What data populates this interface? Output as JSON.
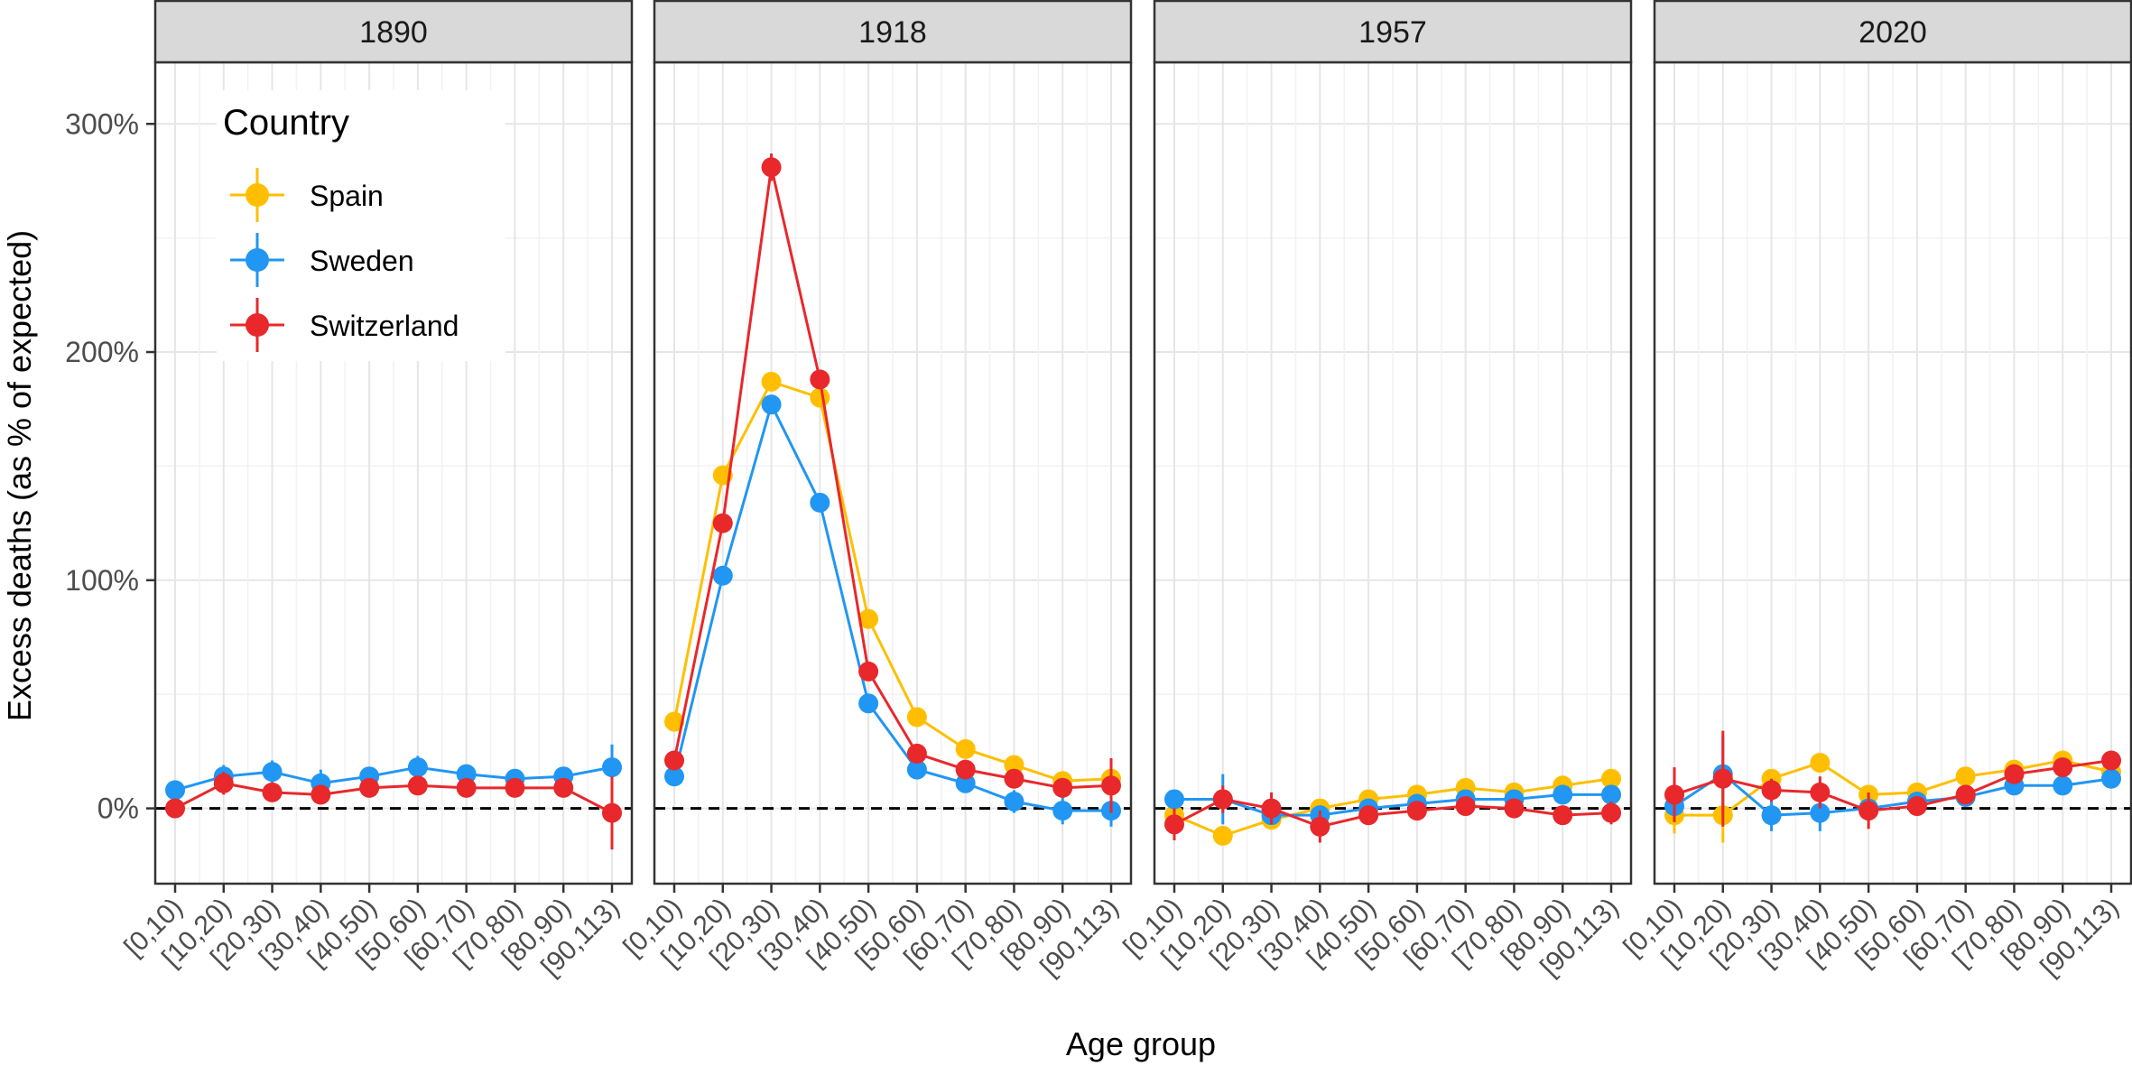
{
  "chart_data": {
    "type": "line",
    "title": "",
    "xlabel": "Age group",
    "ylabel": "Excess deaths (as % of expected)",
    "categories": [
      "[0,10)",
      "[10,20)",
      "[20,30)",
      "[30,40)",
      "[40,50)",
      "[50,60)",
      "[60,70)",
      "[70,80)",
      "[80,90)",
      "[90,113)"
    ],
    "y_ticks": [
      "0%",
      "100%",
      "200%",
      "300%"
    ],
    "y_tick_values": [
      0,
      100,
      200,
      300
    ],
    "ylim": [
      -33,
      327
    ],
    "reference_line": {
      "y": 0,
      "style": "dashed"
    },
    "grid": true,
    "legend": {
      "title": "Country",
      "position": "top-left inside first panel",
      "entries": [
        "Spain",
        "Sweden",
        "Switzerland"
      ]
    },
    "colors": {
      "Spain": "#FFBF00",
      "Sweden": "#2196F3",
      "Switzerland": "#E8282B"
    },
    "panels": [
      {
        "label": "1890",
        "series": [
          {
            "name": "Sweden",
            "values": [
              8,
              14,
              16,
              11,
              14,
              18,
              15,
              13,
              14,
              18
            ],
            "errors": [
              3,
              5,
              5,
              6,
              4,
              5,
              4,
              4,
              4,
              10
            ]
          },
          {
            "name": "Switzerland",
            "values": [
              0,
              11,
              7,
              6,
              9,
              10,
              9,
              9,
              9,
              -2
            ],
            "errors": [
              3,
              5,
              3,
              3,
              3,
              3,
              3,
              3,
              3,
              16
            ]
          }
        ]
      },
      {
        "label": "1918",
        "series": [
          {
            "name": "Spain",
            "values": [
              38,
              146,
              187,
              180,
              83,
              40,
              26,
              19,
              12,
              13
            ],
            "errors": [
              3,
              3,
              3,
              3,
              3,
              3,
              2,
              2,
              2,
              2
            ]
          },
          {
            "name": "Sweden",
            "values": [
              14,
              102,
              177,
              134,
              46,
              17,
              11,
              3,
              -1,
              -1
            ],
            "errors": [
              3,
              3,
              3,
              3,
              4,
              3,
              3,
              5,
              6,
              7
            ]
          },
          {
            "name": "Switzerland",
            "values": [
              21,
              125,
              281,
              188,
              60,
              24,
              17,
              13,
              9,
              10
            ],
            "errors": [
              3,
              4,
              6,
              4,
              4,
              3,
              3,
              3,
              3,
              12
            ]
          }
        ]
      },
      {
        "label": "1957",
        "series": [
          {
            "name": "Spain",
            "values": [
              -3,
              -12,
              -5,
              0,
              4,
              6,
              9,
              7,
              10,
              13
            ],
            "errors": [
              3,
              3,
              3,
              2,
              2,
              2,
              2,
              2,
              2,
              2
            ]
          },
          {
            "name": "Sweden",
            "values": [
              4,
              4,
              -3,
              -3,
              0,
              2,
              4,
              4,
              6,
              6
            ],
            "errors": [
              3,
              11,
              4,
              4,
              3,
              3,
              3,
              3,
              3,
              3
            ]
          },
          {
            "name": "Switzerland",
            "values": [
              -7,
              4,
              0,
              -8,
              -3,
              -1,
              1,
              0,
              -3,
              -2
            ],
            "errors": [
              7,
              6,
              7,
              7,
              4,
              3,
              3,
              3,
              3,
              5
            ]
          }
        ]
      },
      {
        "label": "2020",
        "series": [
          {
            "name": "Spain",
            "values": [
              -3,
              -3,
              13,
              20,
              6,
              7,
              14,
              17,
              21,
              16
            ],
            "errors": [
              8,
              12,
              3,
              3,
              3,
              2,
              2,
              2,
              2,
              2
            ]
          },
          {
            "name": "Sweden",
            "values": [
              1,
              15,
              -3,
              -2,
              0,
              3,
              5,
              10,
              10,
              13
            ],
            "errors": [
              7,
              17,
              7,
              8,
              3,
              3,
              3,
              3,
              3,
              3
            ]
          },
          {
            "name": "Switzerland",
            "values": [
              6,
              13,
              8,
              7,
              -1,
              1,
              6,
              15,
              18,
              21
            ],
            "errors": [
              12,
              21,
              5,
              7,
              8,
              3,
              3,
              3,
              3,
              3
            ]
          }
        ]
      }
    ]
  }
}
